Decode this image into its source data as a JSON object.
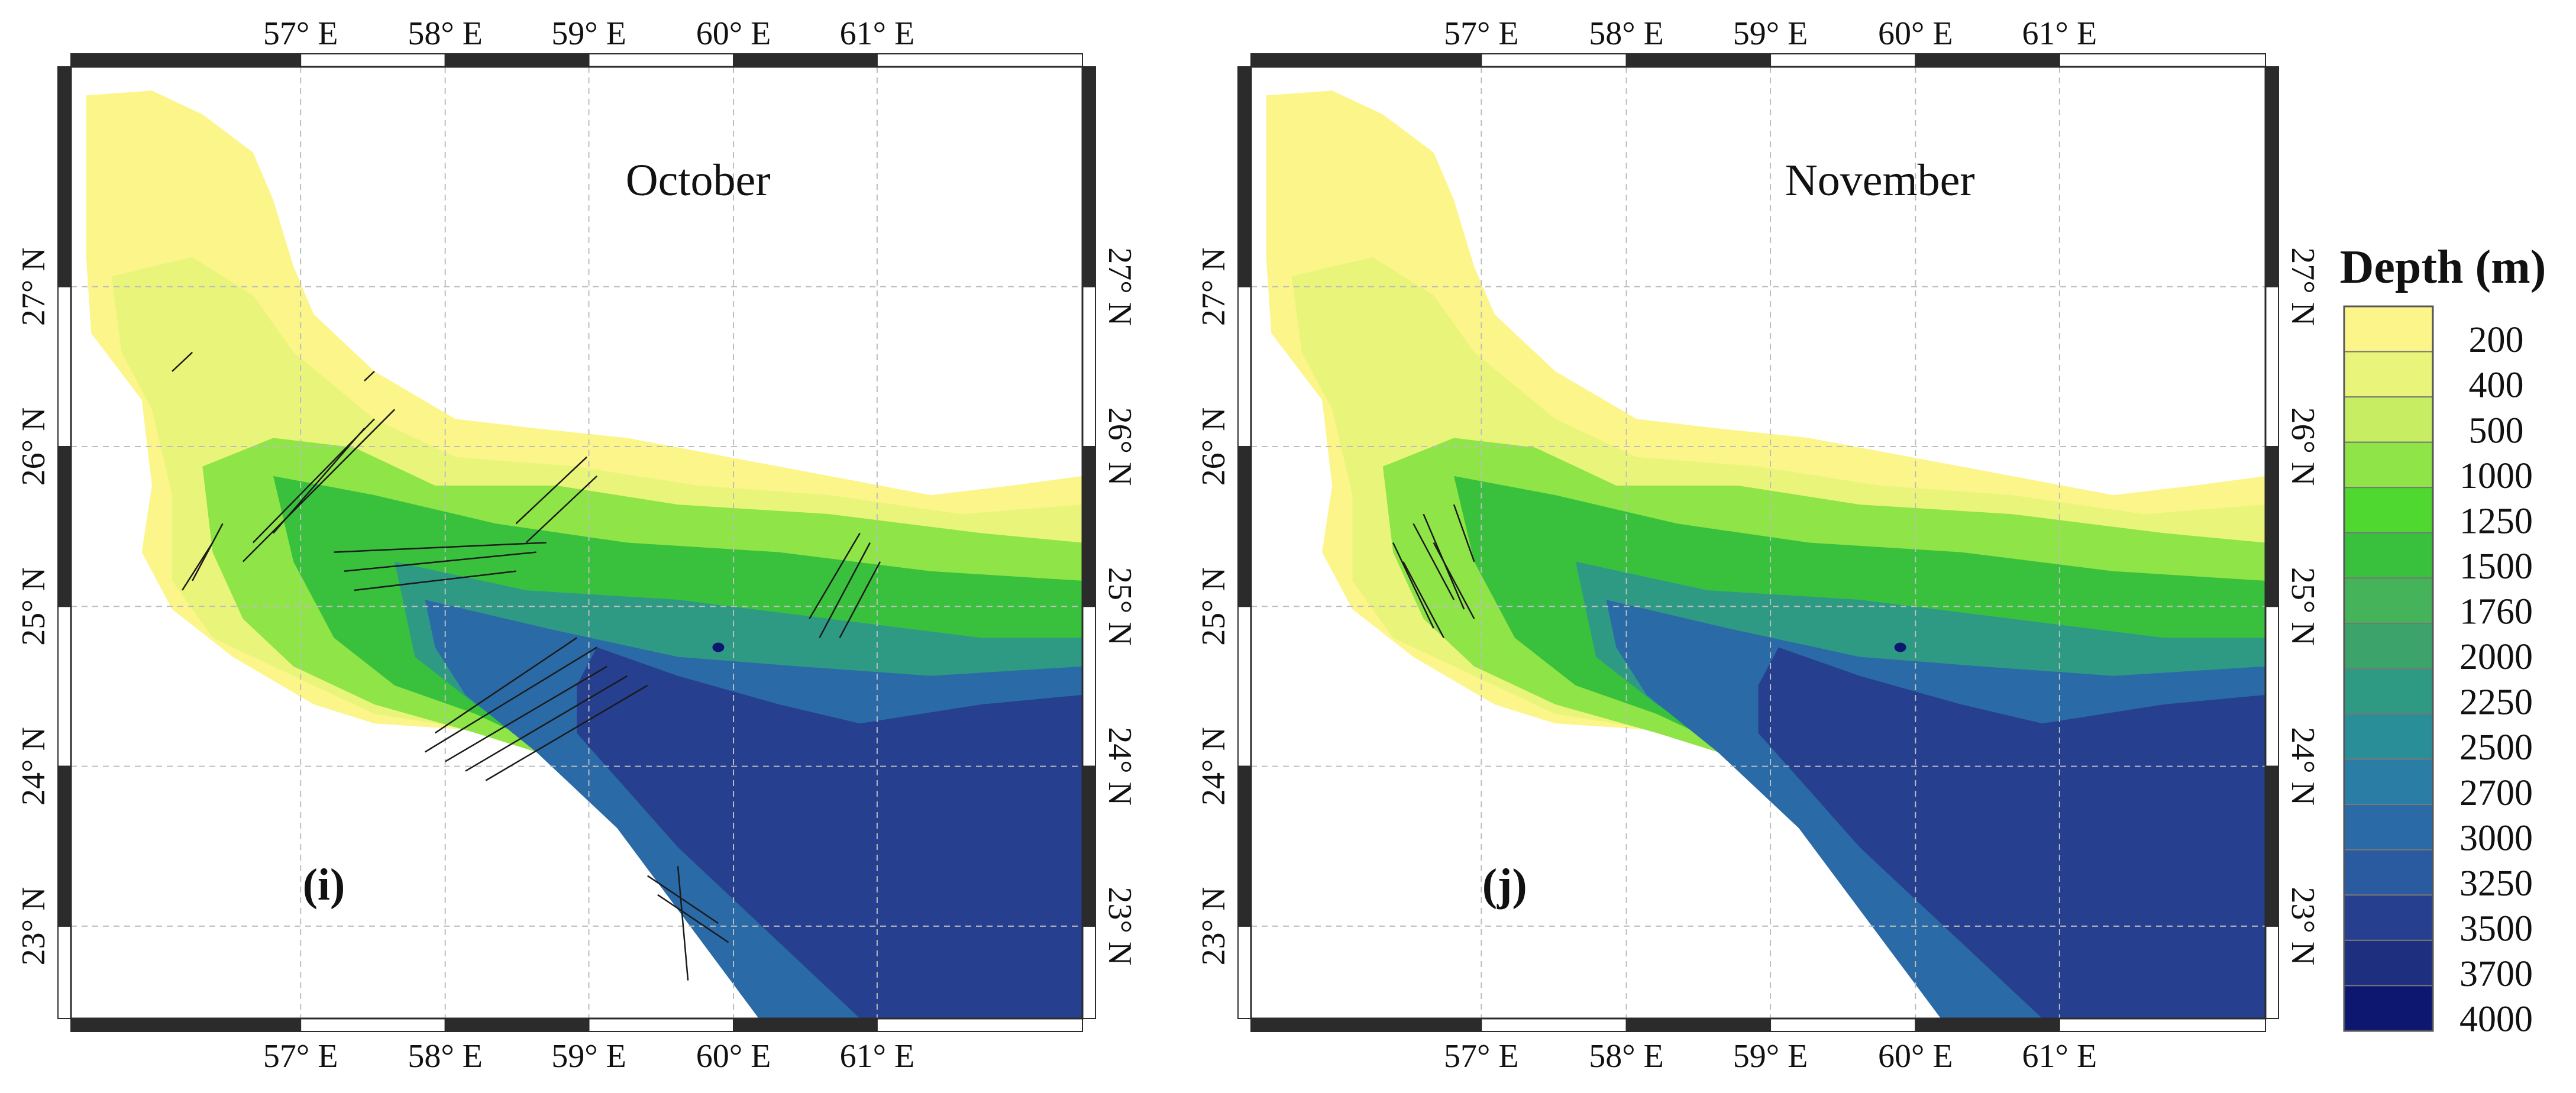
{
  "maps": [
    {
      "id": "october",
      "month_label": "October",
      "panel_label": "(i)",
      "has_lineaments": true,
      "lon_ticks": [
        "57° E",
        "58° E",
        "59° E",
        "60° E",
        "61° E"
      ],
      "lat_ticks": [
        "23° N",
        "24° N",
        "25° N",
        "26° N",
        "27° N"
      ]
    },
    {
      "id": "november",
      "month_label": "November",
      "panel_label": "(j)",
      "has_lineaments": true,
      "lon_ticks": [
        "57° E",
        "58° E",
        "59° E",
        "60° E",
        "61° E"
      ],
      "lat_ticks": [
        "23° N",
        "24° N",
        "25° N",
        "26° N",
        "27° N"
      ]
    }
  ],
  "legend": {
    "title": "Depth (m)",
    "levels": [
      "200",
      "400",
      "500",
      "1000",
      "1250",
      "1500",
      "1760",
      "2000",
      "2250",
      "2500",
      "2700",
      "3000",
      "3250",
      "3500",
      "3700",
      "4000"
    ],
    "colors": [
      "#fbf58a",
      "#e9f57a",
      "#c7ee63",
      "#8fe447",
      "#4fd82f",
      "#39c13d",
      "#44b35a",
      "#3ca46a",
      "#2f9a84",
      "#2a8e99",
      "#2a7ea6",
      "#2a6aa6",
      "#2a5aa0",
      "#263f8f",
      "#1f2f80",
      "#0e1770"
    ]
  }
}
